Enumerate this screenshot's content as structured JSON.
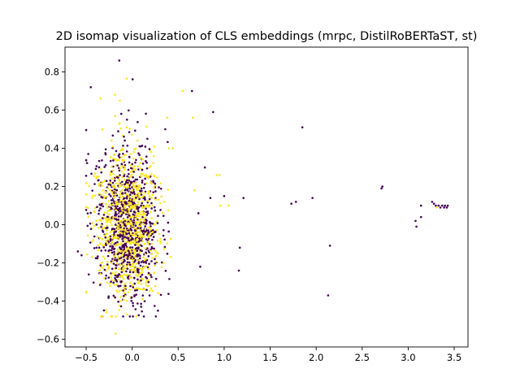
{
  "chart_data": {
    "type": "scatter",
    "title": "2D isomap visualization of CLS embeddings (mrpc, DistilRoBERTaST, st)",
    "xlabel": "",
    "ylabel": "",
    "xlim": [
      -0.73,
      3.65
    ],
    "ylim": [
      -0.64,
      0.93
    ],
    "xticks": [
      -0.5,
      0.0,
      0.5,
      1.0,
      1.5,
      2.0,
      2.5,
      3.0,
      3.5
    ],
    "xtick_labels": [
      "−0.5",
      "0.0",
      "0.5",
      "1.0",
      "1.5",
      "2.0",
      "2.5",
      "3.0",
      "3.5"
    ],
    "yticks": [
      -0.6,
      -0.4,
      -0.2,
      0.0,
      0.2,
      0.4,
      0.6,
      0.8
    ],
    "ytick_labels": [
      "−0.6",
      "−0.4",
      "−0.2",
      "0.0",
      "0.2",
      "0.4",
      "0.6",
      "0.8"
    ],
    "grid": false,
    "legend": "none",
    "colors": {
      "class0": "#440154",
      "class1": "#fde725"
    },
    "cluster": {
      "note_values": "dense central cluster approximated by sampled points",
      "center": [
        -0.05,
        0.0
      ],
      "spread": [
        0.17,
        0.2
      ]
    },
    "outliers": [
      {
        "x": 0.65,
        "y": 0.7,
        "c": 0
      },
      {
        "x": 0.88,
        "y": 0.59,
        "c": 0
      },
      {
        "x": 0.55,
        "y": 0.7,
        "c": 1
      },
      {
        "x": 0.66,
        "y": 0.56,
        "c": 1
      },
      {
        "x": 0.79,
        "y": 0.3,
        "c": 0
      },
      {
        "x": 0.92,
        "y": 0.26,
        "c": 1
      },
      {
        "x": 0.95,
        "y": 0.26,
        "c": 1
      },
      {
        "x": 0.85,
        "y": 0.14,
        "c": 0
      },
      {
        "x": 1.0,
        "y": 0.15,
        "c": 0
      },
      {
        "x": 0.72,
        "y": 0.06,
        "c": 0
      },
      {
        "x": 0.68,
        "y": 0.18,
        "c": 1
      },
      {
        "x": 0.96,
        "y": 0.1,
        "c": 1
      },
      {
        "x": 1.05,
        "y": 0.1,
        "c": 1
      },
      {
        "x": 0.74,
        "y": -0.22,
        "c": 0
      },
      {
        "x": 1.21,
        "y": 0.14,
        "c": 0
      },
      {
        "x": 1.17,
        "y": -0.12,
        "c": 0
      },
      {
        "x": 1.16,
        "y": -0.24,
        "c": 0
      },
      {
        "x": 1.85,
        "y": 0.51,
        "c": 0
      },
      {
        "x": 1.73,
        "y": 0.11,
        "c": 0
      },
      {
        "x": 1.78,
        "y": 0.12,
        "c": 0
      },
      {
        "x": 1.96,
        "y": 0.14,
        "c": 0
      },
      {
        "x": 2.15,
        "y": -0.11,
        "c": 0
      },
      {
        "x": 2.13,
        "y": -0.37,
        "c": 0
      },
      {
        "x": 2.71,
        "y": 0.19,
        "c": 0
      },
      {
        "x": 2.72,
        "y": 0.2,
        "c": 0
      },
      {
        "x": 3.08,
        "y": 0.02,
        "c": 0
      },
      {
        "x": 3.09,
        "y": -0.01,
        "c": 0
      },
      {
        "x": 3.14,
        "y": 0.1,
        "c": 0
      },
      {
        "x": 3.14,
        "y": 0.04,
        "c": 0
      },
      {
        "x": 3.26,
        "y": 0.12,
        "c": 0
      },
      {
        "x": 3.28,
        "y": 0.11,
        "c": 0
      },
      {
        "x": 3.3,
        "y": 0.1,
        "c": 0
      },
      {
        "x": 3.31,
        "y": 0.09,
        "c": 1
      },
      {
        "x": 3.33,
        "y": 0.1,
        "c": 0
      },
      {
        "x": 3.35,
        "y": 0.09,
        "c": 0
      },
      {
        "x": 3.37,
        "y": 0.1,
        "c": 0
      },
      {
        "x": 3.39,
        "y": 0.09,
        "c": 0
      },
      {
        "x": 3.4,
        "y": 0.1,
        "c": 0
      },
      {
        "x": 3.42,
        "y": 0.09,
        "c": 0
      },
      {
        "x": 3.43,
        "y": 0.1,
        "c": 0
      },
      {
        "x": 0.28,
        "y": -0.45,
        "c": 0
      },
      {
        "x": -0.18,
        "y": -0.57,
        "c": 1
      },
      {
        "x": -0.14,
        "y": 0.86,
        "c": 0
      },
      {
        "x": -0.45,
        "y": 0.72,
        "c": 0
      },
      {
        "x": -0.59,
        "y": -0.14,
        "c": 0
      },
      {
        "x": -0.55,
        "y": -0.16,
        "c": 0
      },
      {
        "x": 0.4,
        "y": 0.4,
        "c": 1
      },
      {
        "x": 0.44,
        "y": 0.4,
        "c": 1
      },
      {
        "x": 0.38,
        "y": 0.56,
        "c": 1
      },
      {
        "x": 0.36,
        "y": 0.5,
        "c": 0
      }
    ]
  }
}
